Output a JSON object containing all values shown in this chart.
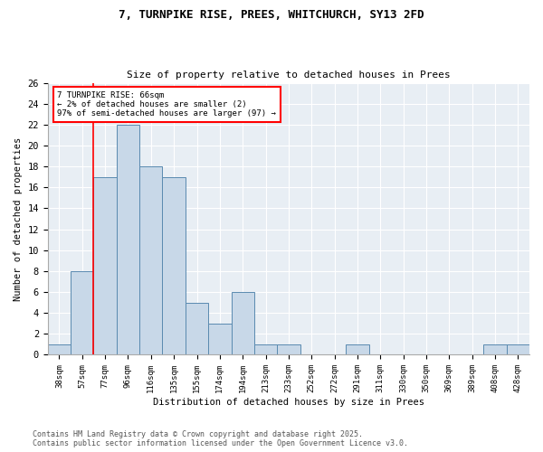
{
  "title1": "7, TURNPIKE RISE, PREES, WHITCHURCH, SY13 2FD",
  "title2": "Size of property relative to detached houses in Prees",
  "xlabel": "Distribution of detached houses by size in Prees",
  "ylabel": "Number of detached properties",
  "bar_color": "#c8d8e8",
  "bar_edge_color": "#5a8ab0",
  "categories": [
    "38sqm",
    "57sqm",
    "77sqm",
    "96sqm",
    "116sqm",
    "135sqm",
    "155sqm",
    "174sqm",
    "194sqm",
    "213sqm",
    "233sqm",
    "252sqm",
    "272sqm",
    "291sqm",
    "311sqm",
    "330sqm",
    "350sqm",
    "369sqm",
    "389sqm",
    "408sqm",
    "428sqm"
  ],
  "values": [
    1,
    8,
    17,
    22,
    18,
    17,
    5,
    3,
    6,
    1,
    1,
    0,
    0,
    1,
    0,
    0,
    0,
    0,
    0,
    1,
    1
  ],
  "ylim": [
    0,
    26
  ],
  "yticks": [
    0,
    2,
    4,
    6,
    8,
    10,
    12,
    14,
    16,
    18,
    20,
    22,
    24,
    26
  ],
  "annotation_title": "7 TURNPIKE RISE: 66sqm",
  "annotation_line1": "← 2% of detached houses are smaller (2)",
  "annotation_line2": "97% of semi-detached houses are larger (97) →",
  "redline_x": 1.5,
  "footnote1": "Contains HM Land Registry data © Crown copyright and database right 2025.",
  "footnote2": "Contains public sector information licensed under the Open Government Licence v3.0.",
  "bg_color": "#ffffff",
  "plot_bg_color": "#e8eef4"
}
